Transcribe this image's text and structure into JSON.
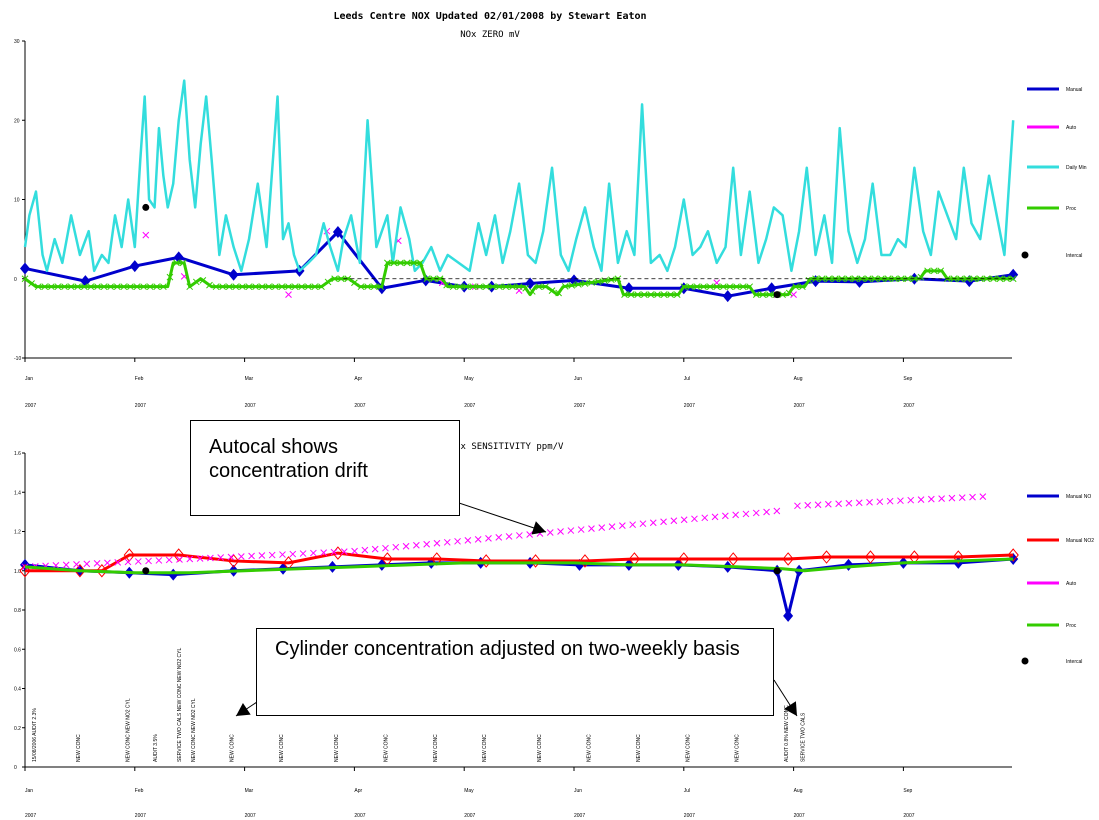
{
  "title": "Leeds Centre NOX Updated 02/01/2008 by Stewart Eaton",
  "month_ticks": [
    "Jan",
    "Feb",
    "Mar",
    "Apr",
    "May",
    "Jun",
    "Jul",
    "Aug",
    "Sep"
  ],
  "year_label": "2007",
  "callouts": {
    "autocal": "Autocal shows concentration drift",
    "cylinder": "Cylinder concentration adjusted on two-weekly basis"
  },
  "event_labels": [
    "15/08/2006 AUDIT 2.3%",
    "NEW CONC",
    "NEW CONC NEW NO2 CYL",
    "AUDIT 3.5%",
    "SERVICE TWO CALS NEW CONC NEW NO2 CYL",
    "NEW CONC NEW NO2 CYL",
    "NEW CONC",
    "NEW CONC",
    "NEW CONC",
    "NEW CONC",
    "NEW CONC",
    "NEW CONC",
    "NEW CONC",
    "NEW CONC",
    "NEW CONC",
    "NEW CONC",
    "NEW CONC",
    "AUDIT 0.8% NEW CONC",
    "SERVICE TWO CALS"
  ],
  "chart_data": [
    {
      "type": "line",
      "title": "NOx ZERO mV",
      "x_unit": "month (2007)",
      "ylim": [
        -10,
        30
      ],
      "yticks": [
        "-10",
        "0",
        "10",
        "20",
        "30"
      ],
      "legend_position": "right",
      "series": [
        {
          "name": "Manual",
          "color": "#0000cc",
          "marker": "diamond",
          "x": [
            0,
            0.55,
            1.0,
            1.4,
            1.9,
            2.5,
            2.85,
            3.25,
            3.65,
            4.0,
            4.25,
            4.6,
            5.0,
            5.5,
            6.0,
            6.4,
            6.8,
            7.2,
            7.6,
            8.1,
            8.6,
            9.0
          ],
          "y": [
            1.3,
            -0.3,
            1.6,
            2.7,
            0.5,
            1.0,
            5.9,
            -1.2,
            -0.2,
            -1.0,
            -1.0,
            -0.6,
            -0.2,
            -1.2,
            -1.2,
            -2.2,
            -1.2,
            -0.3,
            -0.4,
            0.0,
            -0.3,
            0.5
          ]
        },
        {
          "name": "Auto",
          "color": "#ff00ff",
          "marker": "x",
          "x": [
            1.1,
            1.45,
            2.4,
            2.75,
            3.4,
            3.8,
            4.1,
            4.5,
            6.3,
            6.85,
            7.0
          ],
          "y": [
            5.5,
            0.3,
            -2.0,
            6.0,
            4.8,
            -0.5,
            -1.0,
            -1.5,
            -0.5,
            -2.0,
            -2.0
          ]
        },
        {
          "name": "Daily Min",
          "color": "#33dddd",
          "x": [
            0,
            0.04,
            0.1,
            0.16,
            0.2,
            0.27,
            0.34,
            0.42,
            0.5,
            0.58,
            0.63,
            0.7,
            0.76,
            0.82,
            0.88,
            0.94,
            1.0,
            1.05,
            1.09,
            1.13,
            1.18,
            1.22,
            1.26,
            1.3,
            1.35,
            1.4,
            1.45,
            1.5,
            1.55,
            1.6,
            1.65,
            1.7,
            1.77,
            1.83,
            1.9,
            1.97,
            2.04,
            2.12,
            2.2,
            2.3,
            2.35,
            2.4,
            2.45,
            2.5,
            2.58,
            2.65,
            2.72,
            2.78,
            2.85,
            2.9,
            2.97,
            3.05,
            3.12,
            3.2,
            3.3,
            3.35,
            3.42,
            3.5,
            3.55,
            3.62,
            3.7,
            3.78,
            3.85,
            3.95,
            4.05,
            4.13,
            4.2,
            4.28,
            4.35,
            4.42,
            4.5,
            4.58,
            4.65,
            4.72,
            4.8,
            4.88,
            4.95,
            5.02,
            5.1,
            5.18,
            5.25,
            5.32,
            5.4,
            5.48,
            5.55,
            5.62,
            5.7,
            5.78,
            5.85,
            5.92,
            6.0,
            6.08,
            6.15,
            6.22,
            6.3,
            6.38,
            6.45,
            6.52,
            6.6,
            6.68,
            6.75,
            6.82,
            6.9,
            6.98,
            7.05,
            7.12,
            7.2,
            7.28,
            7.35,
            7.42,
            7.5,
            7.58,
            7.65,
            7.72,
            7.8,
            7.88,
            7.95,
            8.02,
            8.1,
            8.18,
            8.25,
            8.32,
            8.4,
            8.48,
            8.55,
            8.62,
            8.7,
            8.78,
            8.85,
            8.92,
            9.0
          ],
          "y": [
            4,
            8,
            11,
            3,
            1,
            5,
            2,
            8,
            3,
            6,
            1,
            3,
            2,
            8,
            4,
            10,
            4,
            15,
            23,
            10,
            9,
            19,
            13,
            9,
            12,
            20,
            25,
            15,
            9,
            17,
            23,
            15,
            3,
            8,
            4,
            1,
            5,
            12,
            4,
            23,
            5,
            7,
            3,
            1,
            2,
            3,
            7,
            4,
            1,
            5,
            8,
            2,
            20,
            4,
            8,
            2,
            9,
            5,
            1,
            2,
            4,
            1,
            3,
            2,
            1,
            7,
            3,
            8,
            2,
            6,
            12,
            3,
            2,
            6,
            14,
            3,
            1,
            5,
            9,
            4,
            1,
            12,
            2,
            6,
            3,
            22,
            2,
            3,
            1,
            4,
            10,
            3,
            4,
            6,
            2,
            4,
            14,
            3,
            11,
            2,
            5,
            9,
            8,
            1,
            6,
            14,
            3,
            8,
            2,
            19,
            6,
            2,
            5,
            12,
            3,
            3,
            5,
            4,
            14,
            6,
            3,
            11,
            8,
            5,
            14,
            7,
            5,
            13,
            8,
            3,
            20
          ]
        },
        {
          "name": "Proc",
          "color": "#33cc00",
          "marker": "x",
          "x": [
            0,
            0.1,
            0.15,
            1.3,
            1.35,
            1.45,
            1.5,
            1.6,
            1.7,
            2.7,
            2.8,
            2.95,
            3.05,
            3.25,
            3.3,
            3.6,
            3.65,
            3.8,
            3.85,
            4.15,
            4.2,
            4.55,
            4.6,
            4.65,
            4.75,
            4.85,
            4.9,
            5.4,
            5.45,
            5.95,
            6.0,
            6.6,
            6.65,
            6.95,
            7.0,
            7.1,
            7.15,
            8.15,
            8.2,
            8.35,
            8.4,
            9.0
          ],
          "y": [
            0,
            -1,
            -1,
            -1,
            2,
            2,
            -1,
            0,
            -1,
            -1,
            0,
            0,
            -1,
            -1,
            2,
            2,
            0,
            0,
            -1,
            -1,
            -1,
            -1,
            -2,
            -1,
            -1,
            -2,
            -1,
            0,
            -2,
            -2,
            -1,
            -1,
            -2,
            -2,
            -1,
            -1,
            0,
            0,
            1,
            1,
            0,
            0
          ]
        },
        {
          "name": "Intercal",
          "color": "#000000",
          "marker": "dot",
          "x": [
            1.1,
            6.85
          ],
          "y": [
            9.0,
            -2.0
          ]
        }
      ]
    },
    {
      "type": "line",
      "title": "x SENSITIVITY ppm/V",
      "x_unit": "month (2007)",
      "ylim": [
        0,
        1.6
      ],
      "yticks": [
        "0",
        "0.2",
        "0.4",
        "0.6",
        "0.8",
        "1.0",
        "1.2",
        "1.4",
        "1.6"
      ],
      "legend_position": "right",
      "series": [
        {
          "name": "Manual NO",
          "color": "#0000cc",
          "marker": "diamond",
          "x": [
            0,
            0.5,
            0.95,
            1.35,
            1.9,
            2.35,
            2.8,
            3.25,
            3.7,
            4.15,
            4.6,
            5.05,
            5.5,
            5.95,
            6.4,
            6.85,
            6.95,
            7.05,
            7.5,
            8.0,
            8.5,
            9.0
          ],
          "y": [
            1.03,
            1.0,
            0.99,
            0.98,
            1.0,
            1.01,
            1.02,
            1.03,
            1.04,
            1.04,
            1.04,
            1.03,
            1.03,
            1.03,
            1.02,
            1.0,
            0.77,
            1.0,
            1.03,
            1.04,
            1.04,
            1.06
          ]
        },
        {
          "name": "Manual NO2",
          "color": "#ff0000",
          "marker": "diamond-open",
          "x": [
            0,
            0.5,
            0.7,
            0.95,
            1.4,
            1.9,
            2.4,
            2.85,
            3.3,
            3.75,
            4.2,
            4.65,
            5.1,
            5.55,
            6.0,
            6.45,
            6.95,
            7.3,
            7.7,
            8.1,
            8.5,
            9.0
          ],
          "y": [
            1.0,
            1.0,
            1.0,
            1.08,
            1.08,
            1.05,
            1.04,
            1.09,
            1.06,
            1.06,
            1.05,
            1.05,
            1.05,
            1.06,
            1.06,
            1.06,
            1.06,
            1.07,
            1.07,
            1.07,
            1.07,
            1.08
          ]
        },
        {
          "name": "Auto",
          "color": "#ff00ff",
          "marker": "x",
          "x": [
            0,
            3.0,
            6.95,
            7.0,
            8.8
          ],
          "y": [
            1.02,
            1.1,
            1.31,
            1.33,
            1.38
          ],
          "marker_step": 0.0938
        },
        {
          "name": "Proc",
          "color": "#33cc00",
          "x": [
            0,
            0.5,
            1.0,
            1.5,
            2.0,
            2.5,
            3.0,
            3.5,
            4.0,
            4.5,
            5.0,
            5.5,
            6.0,
            6.5,
            6.9,
            7.1,
            7.5,
            8.0,
            8.5,
            9.0
          ],
          "y": [
            1.02,
            1.0,
            0.99,
            0.99,
            1.0,
            1.01,
            1.02,
            1.03,
            1.04,
            1.04,
            1.04,
            1.03,
            1.03,
            1.02,
            1.01,
            1.0,
            1.02,
            1.04,
            1.05,
            1.06
          ]
        },
        {
          "name": "Intercal",
          "color": "#000000",
          "marker": "dot",
          "x": [
            1.1,
            6.85
          ],
          "y": [
            1.0,
            1.0
          ]
        }
      ]
    }
  ]
}
